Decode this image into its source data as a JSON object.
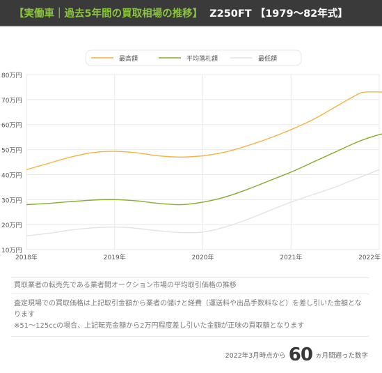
{
  "header": {
    "title_green": "【実働車｜過去5年間の買取相場の推移】",
    "title_white": "Z250FT 【1979〜82年式】"
  },
  "chart_data": {
    "type": "line",
    "x": [
      2018,
      2019,
      2020,
      2021,
      2022
    ],
    "x_tick_labels": [
      "2018年",
      "2019年",
      "2020年",
      "2021年",
      "2022年"
    ],
    "y_tick_labels": [
      "80万円",
      "70万円",
      "60万円",
      "50万円",
      "40万円",
      "30万円",
      "20万円",
      "10万円"
    ],
    "ylim": [
      10,
      80
    ],
    "grid": true,
    "legend_position": "top",
    "series": [
      {
        "name": "最高額",
        "color": "#f5b342",
        "points": [
          [
            2018.0,
            42
          ],
          [
            2018.25,
            44.5
          ],
          [
            2018.5,
            47
          ],
          [
            2018.75,
            48.8
          ],
          [
            2019.0,
            49.3
          ],
          [
            2019.25,
            48.7
          ],
          [
            2019.5,
            47.5
          ],
          [
            2019.75,
            47
          ],
          [
            2020.0,
            47.5
          ],
          [
            2020.25,
            49
          ],
          [
            2020.5,
            51.5
          ],
          [
            2020.75,
            54.5
          ],
          [
            2021.0,
            58
          ],
          [
            2021.25,
            62
          ],
          [
            2021.5,
            67
          ],
          [
            2021.75,
            72
          ],
          [
            2021.85,
            73
          ],
          [
            2022.12,
            73
          ]
        ]
      },
      {
        "name": "平均落札額",
        "color": "#86ad2a",
        "points": [
          [
            2018.0,
            28
          ],
          [
            2018.25,
            28.5
          ],
          [
            2018.5,
            29.2
          ],
          [
            2018.75,
            29.8
          ],
          [
            2019.0,
            30
          ],
          [
            2019.25,
            29.5
          ],
          [
            2019.5,
            28.5
          ],
          [
            2019.75,
            28
          ],
          [
            2020.0,
            29
          ],
          [
            2020.25,
            31
          ],
          [
            2020.5,
            34
          ],
          [
            2020.75,
            37.5
          ],
          [
            2021.0,
            41
          ],
          [
            2021.25,
            45
          ],
          [
            2021.5,
            49
          ],
          [
            2021.75,
            53
          ],
          [
            2022.0,
            56
          ],
          [
            2022.12,
            56.7
          ]
        ]
      },
      {
        "name": "最低額",
        "color": "#e3e3e3",
        "points": [
          [
            2018.0,
            15.5
          ],
          [
            2018.25,
            16.5
          ],
          [
            2018.5,
            17.8
          ],
          [
            2018.75,
            18.7
          ],
          [
            2019.0,
            19
          ],
          [
            2019.25,
            18.5
          ],
          [
            2019.5,
            17.5
          ],
          [
            2019.75,
            16.8
          ],
          [
            2020.0,
            17
          ],
          [
            2020.25,
            19
          ],
          [
            2020.5,
            22
          ],
          [
            2020.75,
            25.5
          ],
          [
            2021.0,
            29
          ],
          [
            2021.25,
            32
          ],
          [
            2021.5,
            35
          ],
          [
            2021.75,
            38.5
          ],
          [
            2022.0,
            42
          ]
        ]
      }
    ]
  },
  "notes": {
    "line1": "買取業者の転売先である業者間オークション市場の平均取引価格の推移",
    "line2": "査定現場での買取価格は上記取引金額から業者の儲けと経費（運送料や出品手数料など）を差し引いた金額となります",
    "line3": "※51～125ccの場合、上記転売金額から2万円程度差し引いた金額が正味の買取額となります"
  },
  "footer": {
    "prefix": "2022年3月時点から",
    "number": "60",
    "suffix": "ヵ月間遡った数字"
  }
}
